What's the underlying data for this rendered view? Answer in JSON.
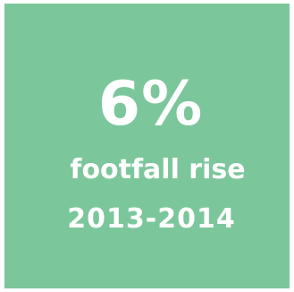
{
  "stat": {
    "value": "6%",
    "label": "footfall rise",
    "period": "2013-2014"
  },
  "colors": {
    "tile_background": "#7cc69b",
    "text": "#ffffff"
  }
}
